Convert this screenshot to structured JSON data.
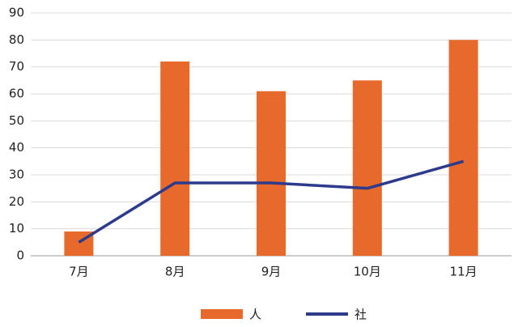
{
  "chart_data": {
    "type": "combo",
    "categories": [
      "7月",
      "8月",
      "9月",
      "10月",
      "11月"
    ],
    "series": [
      {
        "name": "人",
        "type": "bar",
        "color": "#e8692c",
        "values": [
          9,
          72,
          61,
          65,
          80
        ]
      },
      {
        "name": "社",
        "type": "line",
        "color": "#2e3a8c",
        "values": [
          5,
          27,
          27,
          25,
          35
        ]
      }
    ],
    "ylim": [
      0,
      90
    ],
    "yticks": [
      0,
      10,
      20,
      30,
      40,
      50,
      60,
      70,
      80,
      90
    ],
    "grid": true,
    "legend": "bottom"
  }
}
